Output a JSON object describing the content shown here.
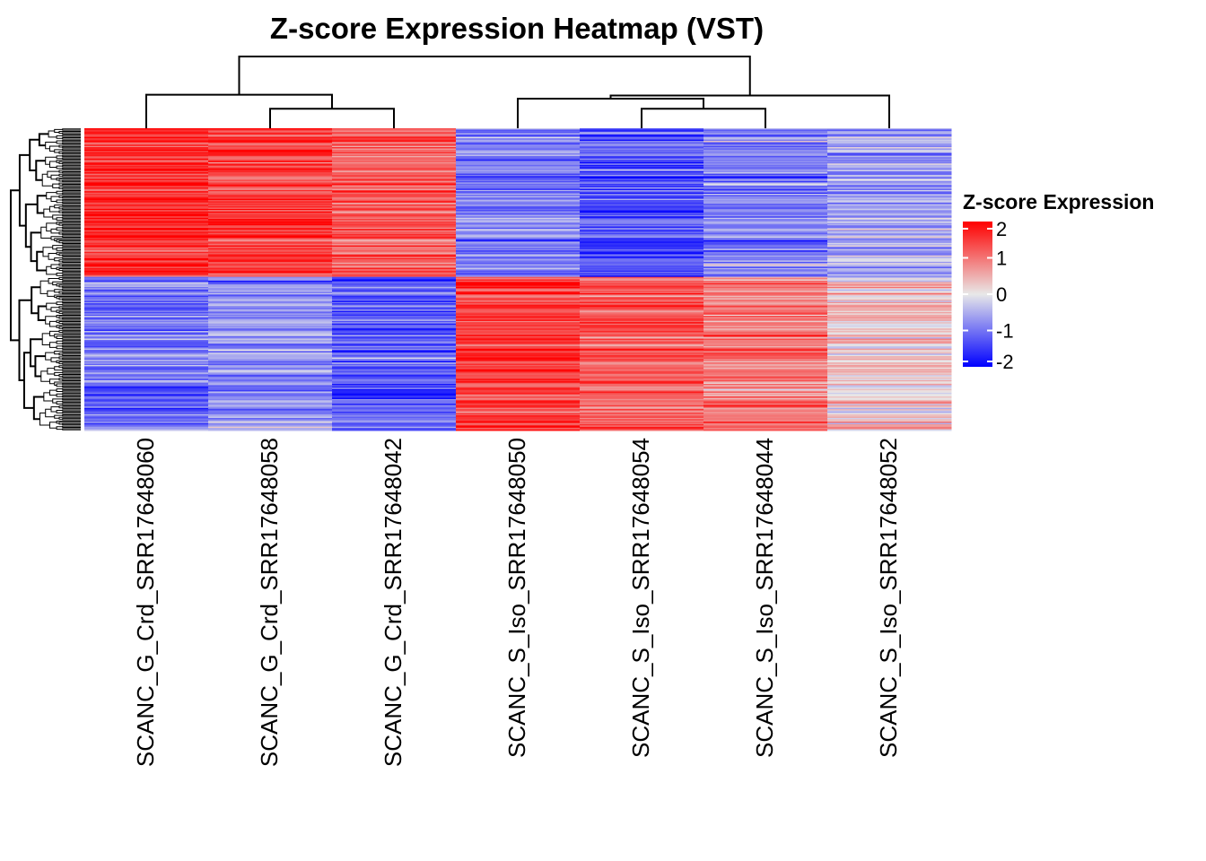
{
  "chart_data": {
    "type": "heatmap",
    "title": "Z-score Expression Heatmap (VST)",
    "columns": [
      "SCANC_G_Crd_SRR17648060",
      "SCANC_G_Crd_SRR17648058",
      "SCANC_G_Crd_SRR17648042",
      "SCANC_S_Iso_SRR17648050",
      "SCANC_S_Iso_SRR17648054",
      "SCANC_S_Iso_SRR17648044",
      "SCANC_S_Iso_SRR17648052"
    ],
    "row_blocks": [
      {
        "name": "upper_cluster",
        "fraction": 0.49,
        "column_mean_z": [
          1.6,
          1.5,
          1.2,
          -0.9,
          -1.3,
          -0.9,
          -0.6
        ]
      },
      {
        "name": "lower_cluster",
        "fraction": 0.51,
        "column_mean_z": [
          -1.0,
          -0.7,
          -1.2,
          1.5,
          1.2,
          1.0,
          0.3
        ]
      }
    ],
    "color_scale": {
      "min": -2,
      "max": 2,
      "colors": [
        {
          "value": -2,
          "color": "#0000ff"
        },
        {
          "value": 0,
          "color": "#e8e8e8"
        },
        {
          "value": 2,
          "color": "#ff0000"
        }
      ]
    },
    "legend": {
      "title": "Z-score Expression",
      "ticks": [
        "2",
        "1",
        "0",
        "-1",
        "-2"
      ],
      "tick_values": [
        2,
        1,
        0,
        -1,
        -2
      ],
      "placement": "right"
    },
    "column_dendrogram": {
      "merges": [
        {
          "left": "SCANC_G_Crd_SRR17648058",
          "right": "SCANC_G_Crd_SRR17648042",
          "height": 0.25
        },
        {
          "left": "SCANC_S_Iso_SRR17648054",
          "right": "SCANC_S_Iso_SRR17648044",
          "height": 0.25
        },
        {
          "left": "SCANC_S_Iso_SRR17648050",
          "right": "merge_2",
          "height": 0.38
        },
        {
          "left": "merge_3",
          "right": "SCANC_S_Iso_SRR17648052",
          "height": 0.42
        },
        {
          "left": "SCANC_G_Crd_SRR17648060",
          "right": "merge_1",
          "height": 0.43
        },
        {
          "left": "merge_5",
          "right": "merge_4",
          "height": 0.92
        }
      ]
    },
    "row_dendrogram": {
      "shown": true,
      "num_rows": 240,
      "top_level_split": [
        0.49,
        0.51
      ]
    }
  },
  "colors": {
    "high": "#ff0000",
    "mid": "#e8e8e8",
    "low": "#0000ff"
  }
}
